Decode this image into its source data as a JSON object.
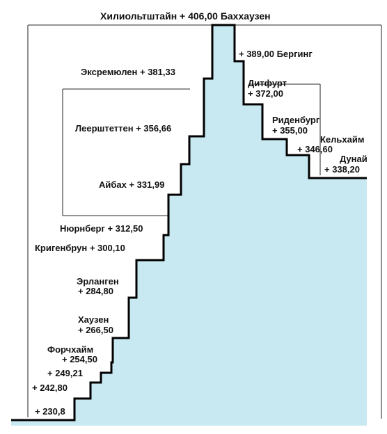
{
  "title": "Хилиольтштайн + 406,00  Баххаузен",
  "colors": {
    "fill": "#c9e9f2",
    "stroke": "#000000",
    "frame": "#555555",
    "text": "#111111"
  },
  "left_labels": [
    {
      "text": "Эксремюлен + 381,33"
    },
    {
      "text": "Леерштеттен + 356,66"
    },
    {
      "text": "Айбах + 331,99"
    },
    {
      "text": "Нюрнберг + 312,50"
    },
    {
      "text": "Кригенбрун + 300,10"
    },
    {
      "text": "Эрланген"
    },
    {
      "text": "+ 284,80"
    },
    {
      "text": "Хаузен"
    },
    {
      "text": "+ 266,50"
    },
    {
      "text": "Форчхайм"
    },
    {
      "text": "+ 254,50"
    },
    {
      "text": "+ 249,21"
    },
    {
      "text": "+ 242,80"
    },
    {
      "text": "+ 230,8"
    }
  ],
  "right_labels": [
    {
      "text": "+ 389,00  Берги​нг"
    },
    {
      "text": "Дитфурт"
    },
    {
      "text": "+ 372,00"
    },
    {
      "text": "Риденбург"
    },
    {
      "text": "+ 355,00"
    },
    {
      "text": "Кельхайм"
    },
    {
      "text": "+ 346,60"
    },
    {
      "text": "Дунай"
    },
    {
      "text": "+ 338,20"
    }
  ]
}
